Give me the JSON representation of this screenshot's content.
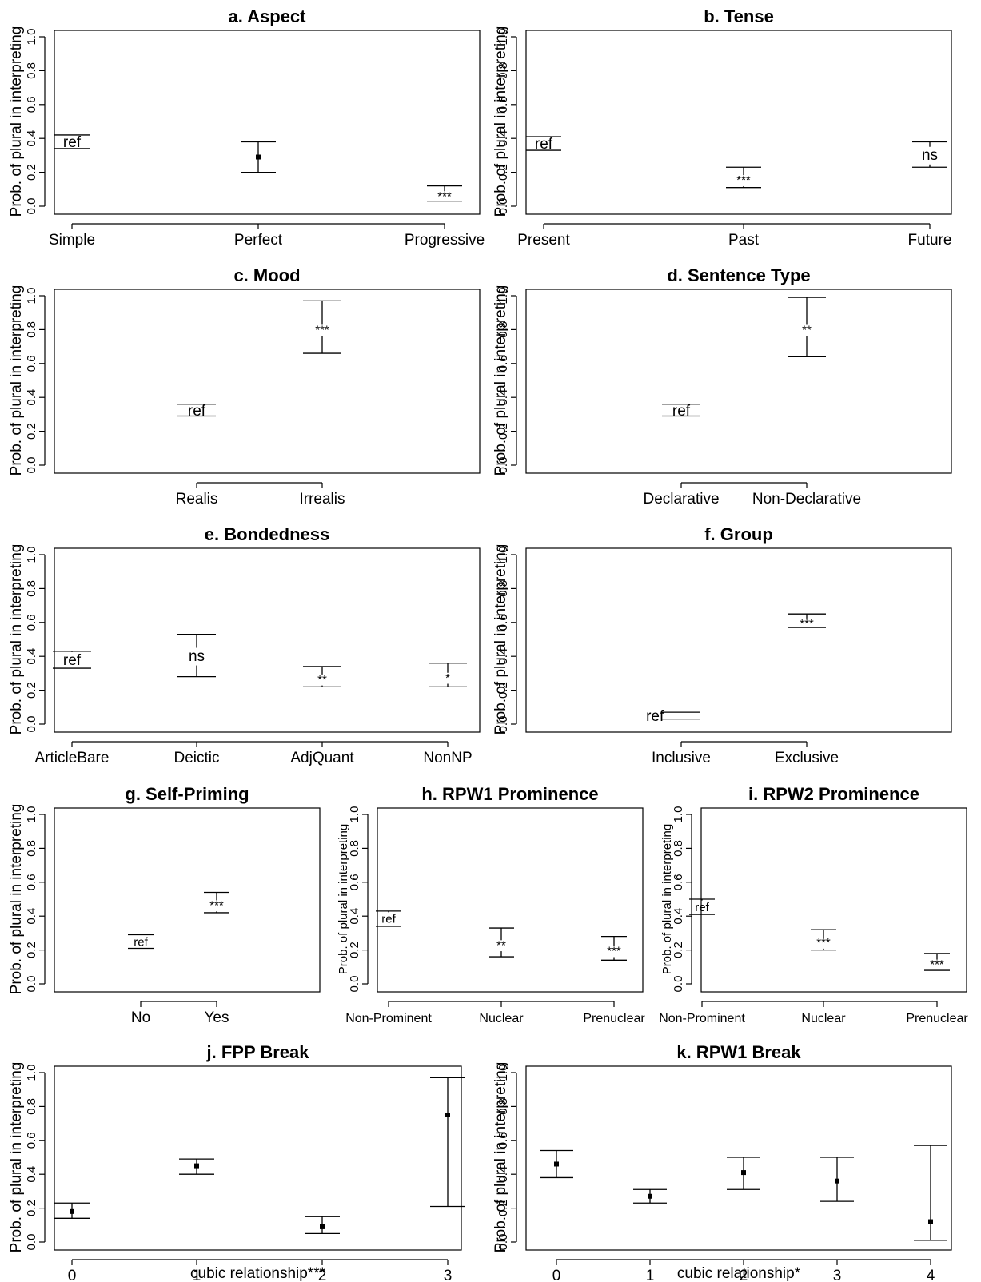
{
  "chart_data": [
    {
      "id": "a",
      "type": "errorbar",
      "title": "a. Aspect",
      "ylabel": "Prob. of plural in interpreting",
      "xlabel": "",
      "ylim": [
        0,
        1
      ],
      "yticks": [
        "0.0",
        "0.2",
        "0.4",
        "0.6",
        "0.8",
        "1.0"
      ],
      "categories": [
        "Simple",
        "Perfect",
        "Progressive"
      ],
      "series": [
        {
          "lower": [
            0.34,
            0.2,
            0.03
          ],
          "upper": [
            0.42,
            0.38,
            0.12
          ],
          "estimate": [
            null,
            0.29,
            null
          ],
          "labels": [
            "ref",
            "",
            "***"
          ]
        }
      ]
    },
    {
      "id": "b",
      "type": "errorbar",
      "title": "b. Tense",
      "ylabel": "Prob. of plural in interpreting",
      "xlabel": "",
      "ylim": [
        0,
        1
      ],
      "yticks": [
        "0.0",
        "0.2",
        "0.4",
        "0.6",
        "0.8",
        "1.0"
      ],
      "categories": [
        "Present",
        "Past",
        "Future"
      ],
      "series": [
        {
          "lower": [
            0.33,
            0.11,
            0.23
          ],
          "upper": [
            0.41,
            0.23,
            0.38
          ],
          "estimate": [
            null,
            null,
            null
          ],
          "labels": [
            "ref",
            "***",
            "ns"
          ]
        }
      ]
    },
    {
      "id": "c",
      "type": "errorbar",
      "title": "c. Mood",
      "ylabel": "Prob. of plural in interpreting",
      "xlabel": "",
      "ylim": [
        0,
        1
      ],
      "yticks": [
        "0.0",
        "0.2",
        "0.4",
        "0.6",
        "0.8",
        "1.0"
      ],
      "categories": [
        "Realis",
        "Irrealis"
      ],
      "series": [
        {
          "lower": [
            0.29,
            0.66
          ],
          "upper": [
            0.36,
            0.97
          ],
          "estimate": [
            null,
            null
          ],
          "labels": [
            "ref",
            "***"
          ]
        }
      ]
    },
    {
      "id": "d",
      "type": "errorbar",
      "title": "d. Sentence Type",
      "ylabel": "Prob. of plural in interpreting",
      "xlabel": "",
      "ylim": [
        0,
        1
      ],
      "yticks": [
        "0.0",
        "0.2",
        "0.4",
        "0.6",
        "0.8",
        "1.0"
      ],
      "categories": [
        "Declarative",
        "Non-Declarative"
      ],
      "series": [
        {
          "lower": [
            0.29,
            0.64
          ],
          "upper": [
            0.36,
            0.99
          ],
          "estimate": [
            null,
            null
          ],
          "labels": [
            "ref",
            "**"
          ]
        }
      ]
    },
    {
      "id": "e",
      "type": "errorbar",
      "title": "e. Bondedness",
      "ylabel": "Prob. of plural in interpreting",
      "xlabel": "",
      "ylim": [
        0,
        1
      ],
      "yticks": [
        "0.0",
        "0.2",
        "0.4",
        "0.6",
        "0.8",
        "1.0"
      ],
      "categories": [
        "ArticleBare",
        "Deictic",
        "AdjQuant",
        "NonNP"
      ],
      "series": [
        {
          "lower": [
            0.33,
            0.28,
            0.22,
            0.22
          ],
          "upper": [
            0.43,
            0.53,
            0.34,
            0.36
          ],
          "estimate": [
            null,
            null,
            null,
            null
          ],
          "labels": [
            "ref",
            "ns",
            "**",
            "*"
          ]
        }
      ]
    },
    {
      "id": "f",
      "type": "errorbar",
      "title": "f. Group",
      "ylabel": "Prob. of plural in interpreting",
      "xlabel": "",
      "ylim": [
        0,
        1
      ],
      "yticks": [
        "0.0",
        "0.2",
        "0.4",
        "0.6",
        "0.8",
        "1.0"
      ],
      "categories": [
        "Inclusive",
        "Exclusive"
      ],
      "series": [
        {
          "lower": [
            0.03,
            0.57
          ],
          "upper": [
            0.07,
            0.65
          ],
          "estimate": [
            null,
            null
          ],
          "labels": [
            "ref",
            "***"
          ]
        }
      ]
    },
    {
      "id": "g",
      "type": "errorbar",
      "title": "g. Self-Priming",
      "ylabel": "Prob. of plural in interpreting",
      "xlabel": "",
      "ylim": [
        0,
        1
      ],
      "yticks": [
        "0.0",
        "0.2",
        "0.4",
        "0.6",
        "0.8",
        "1.0"
      ],
      "categories": [
        "No",
        "Yes"
      ],
      "series": [
        {
          "lower": [
            0.21,
            0.42
          ],
          "upper": [
            0.29,
            0.54
          ],
          "estimate": [
            null,
            null
          ],
          "labels": [
            "ref",
            "***"
          ]
        }
      ]
    },
    {
      "id": "h",
      "type": "errorbar",
      "title": "h. RPW1 Prominence",
      "ylabel": "Prob. of plural in interpreting",
      "xlabel": "",
      "ylim": [
        0,
        1
      ],
      "yticks": [
        "0.0",
        "0.2",
        "0.4",
        "0.6",
        "0.8",
        "1.0"
      ],
      "categories": [
        "Non-Prominent",
        "Nuclear",
        "Prenuclear"
      ],
      "series": [
        {
          "lower": [
            0.34,
            0.16,
            0.14
          ],
          "upper": [
            0.43,
            0.33,
            0.28
          ],
          "estimate": [
            null,
            null,
            null
          ],
          "labels": [
            "ref",
            "**",
            "***"
          ]
        }
      ]
    },
    {
      "id": "i",
      "type": "errorbar",
      "title": "i. RPW2 Prominence",
      "ylabel": "Prob. of plural in interpreting",
      "xlabel": "",
      "ylim": [
        0,
        1
      ],
      "yticks": [
        "0.0",
        "0.2",
        "0.4",
        "0.6",
        "0.8",
        "1.0"
      ],
      "categories": [
        "Non-Prominent",
        "Nuclear",
        "Prenuclear"
      ],
      "series": [
        {
          "lower": [
            0.41,
            0.2,
            0.08
          ],
          "upper": [
            0.5,
            0.32,
            0.18
          ],
          "estimate": [
            null,
            null,
            null
          ],
          "labels": [
            "ref",
            "***",
            "***"
          ]
        }
      ]
    },
    {
      "id": "j",
      "type": "errorbar",
      "title": "j. FPP Break",
      "ylabel": "Prob. of plural in interpreting",
      "xlabel": "cubic relationship***",
      "ylim": [
        0,
        1
      ],
      "yticks": [
        "0.0",
        "0.2",
        "0.4",
        "0.6",
        "0.8",
        "1.0"
      ],
      "categories": [
        "0",
        "1",
        "2",
        "3"
      ],
      "series": [
        {
          "lower": [
            0.14,
            0.4,
            0.05,
            0.21
          ],
          "upper": [
            0.23,
            0.49,
            0.15,
            0.97
          ],
          "estimate": [
            0.18,
            0.45,
            0.09,
            0.75
          ],
          "labels": [
            "",
            "",
            "",
            ""
          ]
        }
      ]
    },
    {
      "id": "k",
      "type": "errorbar",
      "title": "k. RPW1 Break",
      "ylabel": "Prob. of plural in interpreting",
      "xlabel": "cubic relationship*",
      "ylim": [
        0,
        1
      ],
      "yticks": [
        "0.0",
        "0.2",
        "0.4",
        "0.6",
        "0.8",
        "1.0"
      ],
      "categories": [
        "0",
        "1",
        "2",
        "3",
        "4"
      ],
      "series": [
        {
          "lower": [
            0.38,
            0.23,
            0.31,
            0.24,
            0.01
          ],
          "upper": [
            0.54,
            0.31,
            0.5,
            0.5,
            0.57
          ],
          "estimate": [
            0.46,
            0.27,
            0.41,
            0.36,
            0.12
          ],
          "labels": [
            "",
            "",
            "",
            "",
            ""
          ]
        }
      ]
    }
  ]
}
